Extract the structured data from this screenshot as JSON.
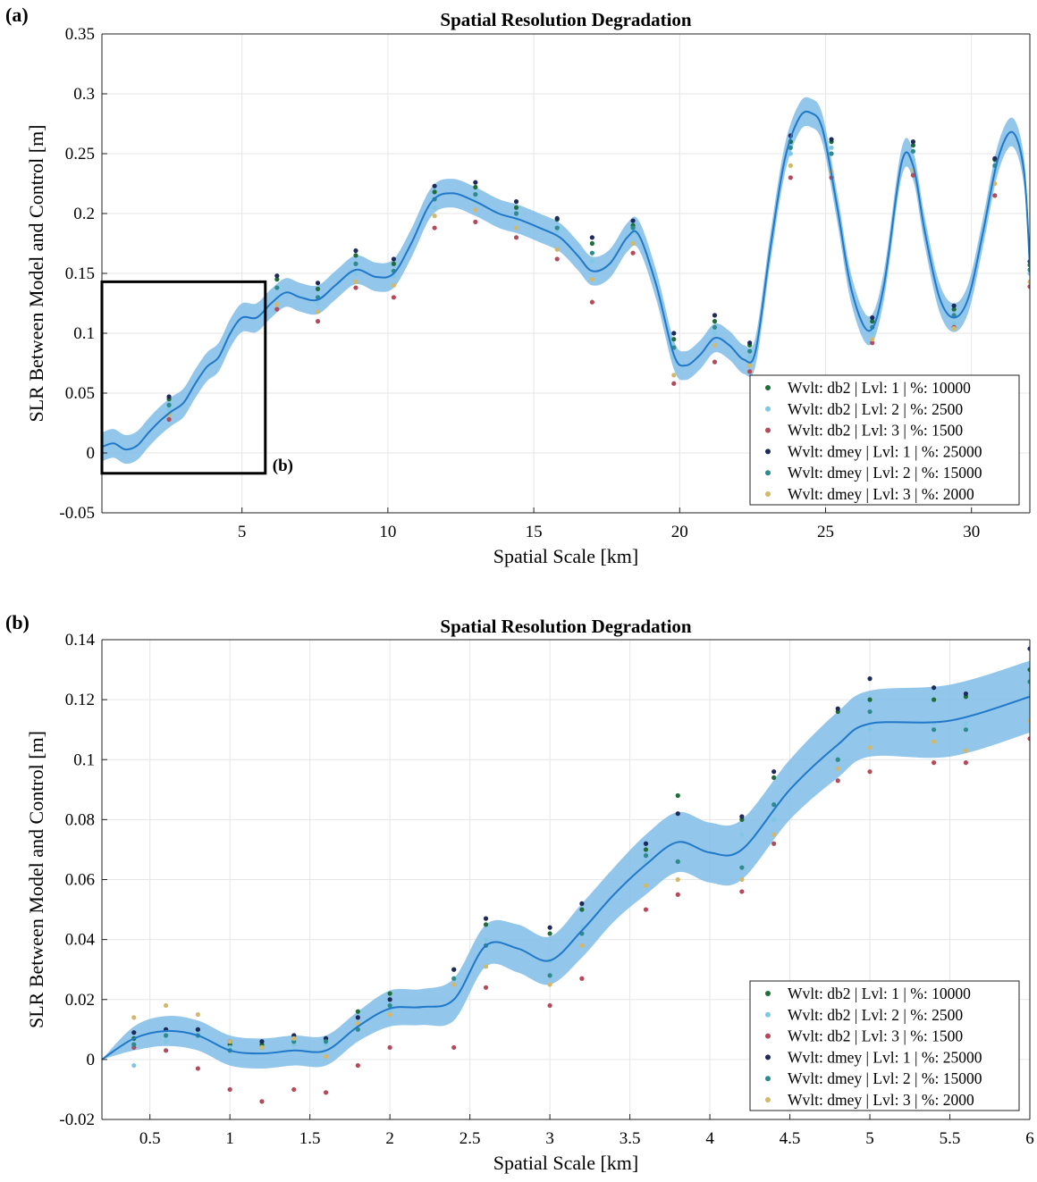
{
  "panels": [
    {
      "letter": "(a)",
      "inset_label": "(b)"
    },
    {
      "letter": "(b)",
      "inset_label": ""
    }
  ],
  "legend": [
    {
      "label": "Wvlt:  db2   | Lvl: 1 | %: 10000",
      "color": "#1f6e3a"
    },
    {
      "label": "Wvlt:  db2   | Lvl: 2 | %: 2500",
      "color": "#7ec8e3"
    },
    {
      "label": "Wvlt:  db2   | Lvl: 3 | %: 1500",
      "color": "#b44a5a"
    },
    {
      "label": "Wvlt: dmey | Lvl: 1 | %: 25000",
      "color": "#1f2a5c"
    },
    {
      "label": "Wvlt: dmey | Lvl: 2 | %: 15000",
      "color": "#2e8b8b"
    },
    {
      "label": "Wvlt: dmey | Lvl: 3 | %: 2000",
      "color": "#d4b86a"
    }
  ],
  "colors": {
    "mean_line": "#1f78c8",
    "band": "#7fbce8",
    "grid": "#e6e6e6"
  },
  "chart_data": [
    {
      "type": "line",
      "title": "Spatial Resolution Degradation",
      "xlabel": "Spatial Scale [km]",
      "ylabel": "SLR Between Model and Control [m]",
      "xlim": [
        0.2,
        32
      ],
      "ylim": [
        -0.05,
        0.35
      ],
      "xticks": [
        5,
        10,
        15,
        20,
        25,
        30
      ],
      "yticks": [
        -0.05,
        0,
        0.05,
        0.1,
        0.15,
        0.2,
        0.25,
        0.3,
        0.35
      ],
      "ytick_labels": [
        "-0.05",
        "0",
        "0.05",
        "0.1",
        "0.15",
        "0.2",
        "0.25",
        "0.3",
        "0.35"
      ],
      "grid": true,
      "legend_position": "lower-right",
      "band_halfwidth": 0.012,
      "mean": {
        "x": [
          0.2,
          0.6,
          1.0,
          1.4,
          1.8,
          2.2,
          2.6,
          3.0,
          3.4,
          3.8,
          4.2,
          4.6,
          5.0,
          5.5,
          6.0,
          6.5,
          7.0,
          7.6,
          8.2,
          8.9,
          9.6,
          10.2,
          10.8,
          11.5,
          12.2,
          13.0,
          13.8,
          14.5,
          15.2,
          15.9,
          16.5,
          17.0,
          17.6,
          18.2,
          18.6,
          19.2,
          19.8,
          20.2,
          20.7,
          21.2,
          21.7,
          22.2,
          22.6,
          23.1,
          23.6,
          24.1,
          24.5,
          24.9,
          25.4,
          25.9,
          26.5,
          27.0,
          27.6,
          28.0,
          28.4,
          28.9,
          29.4,
          29.9,
          30.4,
          30.9,
          31.4,
          31.8,
          32.0
        ],
        "y": [
          0.005,
          0.008,
          0.003,
          0.006,
          0.017,
          0.027,
          0.035,
          0.042,
          0.058,
          0.072,
          0.08,
          0.1,
          0.113,
          0.113,
          0.125,
          0.134,
          0.13,
          0.128,
          0.14,
          0.153,
          0.147,
          0.15,
          0.175,
          0.21,
          0.217,
          0.21,
          0.2,
          0.195,
          0.188,
          0.18,
          0.165,
          0.152,
          0.158,
          0.18,
          0.182,
          0.14,
          0.082,
          0.073,
          0.082,
          0.096,
          0.09,
          0.078,
          0.085,
          0.17,
          0.245,
          0.28,
          0.284,
          0.27,
          0.205,
          0.135,
          0.102,
          0.14,
          0.242,
          0.24,
          0.185,
          0.13,
          0.113,
          0.13,
          0.185,
          0.245,
          0.268,
          0.235,
          0.155
        ]
      },
      "scatter": [
        {
          "x": [
            2.5,
            6.2,
            7.6,
            8.9,
            10.2,
            11.6,
            13.0,
            14.4,
            15.8,
            17.0,
            18.4,
            19.8,
            21.2,
            22.4,
            23.8,
            25.2,
            26.6,
            28.0,
            29.4,
            30.8,
            32.0
          ],
          "y": [
            0.045,
            0.145,
            0.137,
            0.165,
            0.158,
            0.218,
            0.222,
            0.205,
            0.195,
            0.175,
            0.19,
            0.095,
            0.11,
            0.09,
            0.26,
            0.26,
            0.11,
            0.257,
            0.12,
            0.245,
            0.157
          ]
        },
        {
          "x": [
            2.5,
            6.2,
            7.6,
            8.9,
            10.2,
            11.6,
            13.0,
            14.4,
            15.8,
            17.0,
            18.4,
            19.8,
            21.2,
            22.4,
            23.8,
            25.2,
            26.6,
            28.0,
            29.4,
            30.8,
            32.0
          ],
          "y": [
            0.036,
            0.13,
            0.125,
            0.15,
            0.148,
            0.205,
            0.212,
            0.195,
            0.185,
            0.16,
            0.185,
            0.08,
            0.1,
            0.08,
            0.25,
            0.255,
            0.1,
            0.245,
            0.108,
            0.235,
            0.15
          ]
        },
        {
          "x": [
            2.5,
            6.2,
            7.6,
            8.9,
            10.2,
            11.6,
            13.0,
            14.4,
            15.8,
            17.0,
            18.4,
            19.8,
            21.2,
            22.4,
            23.8,
            25.2,
            26.6,
            28.0,
            29.4,
            30.8,
            32.0
          ],
          "y": [
            0.028,
            0.12,
            0.11,
            0.138,
            0.13,
            0.188,
            0.193,
            0.18,
            0.162,
            0.126,
            0.167,
            0.058,
            0.076,
            0.068,
            0.23,
            0.23,
            0.092,
            0.232,
            0.105,
            0.215,
            0.139
          ]
        },
        {
          "x": [
            2.5,
            6.2,
            7.6,
            8.9,
            10.2,
            11.6,
            13.0,
            14.4,
            15.8,
            17.0,
            18.4,
            19.8,
            21.2,
            22.4,
            23.8,
            25.2,
            26.6,
            28.0,
            29.4,
            30.8,
            32.0
          ],
          "y": [
            0.047,
            0.148,
            0.142,
            0.169,
            0.162,
            0.223,
            0.226,
            0.21,
            0.196,
            0.18,
            0.194,
            0.1,
            0.115,
            0.092,
            0.265,
            0.262,
            0.113,
            0.26,
            0.123,
            0.246,
            0.16
          ]
        },
        {
          "x": [
            2.5,
            6.2,
            7.6,
            8.9,
            10.2,
            11.6,
            13.0,
            14.4,
            15.8,
            17.0,
            18.4,
            19.8,
            21.2,
            22.4,
            23.8,
            25.2,
            26.6,
            28.0,
            29.4,
            30.8,
            32.0
          ],
          "y": [
            0.04,
            0.138,
            0.13,
            0.158,
            0.152,
            0.212,
            0.216,
            0.2,
            0.188,
            0.167,
            0.188,
            0.088,
            0.105,
            0.085,
            0.255,
            0.25,
            0.105,
            0.252,
            0.115,
            0.24,
            0.153
          ]
        },
        {
          "x": [
            2.5,
            6.2,
            7.6,
            8.9,
            10.2,
            11.6,
            13.0,
            14.4,
            15.8,
            17.0,
            18.4,
            19.8,
            21.2,
            22.4,
            23.8,
            25.2,
            26.6,
            28.0,
            29.4,
            30.8,
            32.0
          ],
          "y": [
            0.032,
            0.124,
            0.118,
            0.143,
            0.14,
            0.198,
            0.203,
            0.188,
            0.17,
            0.145,
            0.175,
            0.065,
            0.09,
            0.073,
            0.24,
            0.235,
            0.095,
            0.236,
            0.104,
            0.225,
            0.143
          ]
        }
      ],
      "inset": {
        "x0": 0.2,
        "x1": 5.8,
        "y0": -0.017,
        "y1": 0.143
      }
    },
    {
      "type": "line",
      "title": "Spatial Resolution Degradation",
      "xlabel": "Spatial Scale [km]",
      "ylabel": "SLR Between Model and Control [m]",
      "xlim": [
        0.2,
        6
      ],
      "ylim": [
        -0.02,
        0.14
      ],
      "xticks": [
        0.5,
        1,
        1.5,
        2,
        2.5,
        3,
        3.5,
        4,
        4.5,
        5,
        5.5,
        6
      ],
      "yticks": [
        -0.02,
        0,
        0.02,
        0.04,
        0.06,
        0.08,
        0.1,
        0.12,
        0.14
      ],
      "ytick_labels": [
        "-0.02",
        "0",
        "0.02",
        "0.04",
        "0.06",
        "0.08",
        "0.1",
        "0.12",
        "0.14"
      ],
      "grid": true,
      "legend_position": "lower-right",
      "band_halfwidth": [
        0.0,
        0.004,
        0.005,
        0.005,
        0.005,
        0.005,
        0.005,
        0.005,
        0.005,
        0.006,
        0.006,
        0.007,
        0.007,
        0.008,
        0.008,
        0.009,
        0.009,
        0.01,
        0.01,
        0.01,
        0.01,
        0.01,
        0.011,
        0.011,
        0.012,
        0.012
      ],
      "mean": {
        "x": [
          0.2,
          0.4,
          0.6,
          0.8,
          1.0,
          1.2,
          1.4,
          1.6,
          1.8,
          2.0,
          2.2,
          2.4,
          2.6,
          2.8,
          3.0,
          3.2,
          3.4,
          3.6,
          3.8,
          4.0,
          4.2,
          4.5,
          4.8,
          5.0,
          5.5,
          6.0
        ],
        "y": [
          0.0,
          0.007,
          0.0095,
          0.008,
          0.003,
          0.002,
          0.003,
          0.003,
          0.011,
          0.017,
          0.0175,
          0.02,
          0.038,
          0.037,
          0.033,
          0.043,
          0.055,
          0.065,
          0.0725,
          0.069,
          0.07,
          0.09,
          0.105,
          0.112,
          0.113,
          0.121
        ]
      },
      "scatter": [
        {
          "x": [
            0.4,
            0.6,
            0.8,
            1.0,
            1.2,
            1.4,
            1.6,
            1.8,
            2.0,
            2.4,
            2.6,
            3.0,
            3.2,
            3.6,
            3.8,
            4.2,
            4.4,
            4.8,
            5.0,
            5.4,
            5.6,
            6.0
          ],
          "y": [
            0.007,
            0.01,
            0.01,
            0.005,
            0.005,
            0.008,
            0.007,
            0.016,
            0.022,
            0.03,
            0.045,
            0.042,
            0.05,
            0.07,
            0.088,
            0.08,
            0.094,
            0.116,
            0.12,
            0.12,
            0.121,
            0.13
          ]
        },
        {
          "x": [
            0.4,
            0.6,
            0.8,
            1.0,
            1.2,
            1.4,
            1.6,
            1.8,
            2.0,
            2.4,
            2.6,
            3.0,
            3.2,
            3.6,
            3.8,
            4.2,
            4.4,
            4.8,
            5.0,
            5.4,
            5.6,
            6.0
          ],
          "y": [
            -0.002,
            0.006,
            0.009,
            0.004,
            0.004,
            0.005,
            0.005,
            0.012,
            0.016,
            0.025,
            0.04,
            0.033,
            0.044,
            0.066,
            0.066,
            0.075,
            0.08,
            0.1,
            0.11,
            0.112,
            0.112,
            0.122
          ]
        },
        {
          "x": [
            0.4,
            0.6,
            0.8,
            1.0,
            1.2,
            1.4,
            1.6,
            1.8,
            2.0,
            2.4,
            2.6,
            3.0,
            3.2,
            3.6,
            3.8,
            4.2,
            4.4,
            4.8,
            5.0,
            5.4,
            5.6,
            6.0
          ],
          "y": [
            0.004,
            0.003,
            -0.003,
            -0.01,
            -0.014,
            -0.01,
            -0.011,
            -0.002,
            0.004,
            0.004,
            0.024,
            0.018,
            0.027,
            0.05,
            0.055,
            0.056,
            0.072,
            0.093,
            0.096,
            0.099,
            0.099,
            0.107
          ]
        },
        {
          "x": [
            0.4,
            0.6,
            0.8,
            1.0,
            1.2,
            1.4,
            1.6,
            1.8,
            2.0,
            2.4,
            2.6,
            3.0,
            3.2,
            3.6,
            3.8,
            4.2,
            4.4,
            4.8,
            5.0,
            5.4,
            5.6,
            6.0
          ],
          "y": [
            0.009,
            0.01,
            0.01,
            0.006,
            0.006,
            0.008,
            0.007,
            0.014,
            0.02,
            0.03,
            0.047,
            0.044,
            0.052,
            0.072,
            0.082,
            0.081,
            0.096,
            0.117,
            0.127,
            0.124,
            0.122,
            0.137
          ]
        },
        {
          "x": [
            0.4,
            0.6,
            0.8,
            1.0,
            1.2,
            1.4,
            1.6,
            1.8,
            2.0,
            2.4,
            2.6,
            3.0,
            3.2,
            3.6,
            3.8,
            4.2,
            4.4,
            4.8,
            5.0,
            5.4,
            5.6,
            6.0
          ],
          "y": [
            0.005,
            0.008,
            0.008,
            0.003,
            0.004,
            0.006,
            0.006,
            0.01,
            0.018,
            0.027,
            0.038,
            0.028,
            0.042,
            0.068,
            0.066,
            0.064,
            0.085,
            0.1,
            0.116,
            0.11,
            0.11,
            0.126
          ]
        },
        {
          "x": [
            0.4,
            0.6,
            0.8,
            1.0,
            1.2,
            1.4,
            1.6,
            1.8,
            2.0,
            2.4,
            2.6,
            3.0,
            3.2,
            3.6,
            3.8,
            4.2,
            4.4,
            4.8,
            5.0,
            5.4,
            5.6,
            6.0
          ],
          "y": [
            0.014,
            0.018,
            0.015,
            0.006,
            0.004,
            0.007,
            0.001,
            0.012,
            0.015,
            0.025,
            0.031,
            0.025,
            0.038,
            0.058,
            0.06,
            0.06,
            0.075,
            0.097,
            0.104,
            0.106,
            0.103,
            0.113
          ]
        }
      ]
    }
  ]
}
